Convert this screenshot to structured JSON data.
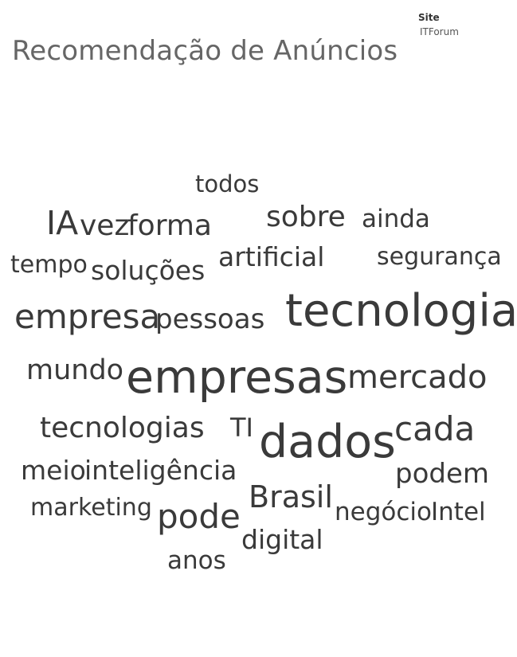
{
  "header": {
    "title": "Recomendação de Anúncios",
    "filter_label": "Site",
    "filter_value": "ITForum"
  },
  "colors": {
    "title": "#666666",
    "words": "#3a3a3a"
  },
  "chart_data": {
    "type": "word_cloud",
    "title": "Recomendação de Anúncios",
    "filter": {
      "Site": "ITForum"
    },
    "words": [
      {
        "text": "todos",
        "weight": 29
      },
      {
        "text": "IA",
        "weight": 41
      },
      {
        "text": "vez",
        "weight": 36
      },
      {
        "text": "forma",
        "weight": 36
      },
      {
        "text": "sobre",
        "weight": 36
      },
      {
        "text": "ainda",
        "weight": 31
      },
      {
        "text": "tempo",
        "weight": 30
      },
      {
        "text": "soluções",
        "weight": 33
      },
      {
        "text": "artificial",
        "weight": 33
      },
      {
        "text": "segurança",
        "weight": 30
      },
      {
        "text": "empresa",
        "weight": 42
      },
      {
        "text": "pessoas",
        "weight": 34
      },
      {
        "text": "tecnologia",
        "weight": 56
      },
      {
        "text": "mundo",
        "weight": 35
      },
      {
        "text": "empresas",
        "weight": 57
      },
      {
        "text": "mercado",
        "weight": 40
      },
      {
        "text": "tecnologias",
        "weight": 36
      },
      {
        "text": "TI",
        "weight": 32
      },
      {
        "text": "dados",
        "weight": 57
      },
      {
        "text": "cada",
        "weight": 42
      },
      {
        "text": "meio",
        "weight": 33
      },
      {
        "text": "inteligência",
        "weight": 33
      },
      {
        "text": "podem",
        "weight": 34
      },
      {
        "text": "marketing",
        "weight": 30
      },
      {
        "text": "pode",
        "weight": 42
      },
      {
        "text": "Brasil",
        "weight": 38
      },
      {
        "text": "negócio",
        "weight": 31
      },
      {
        "text": "Intel",
        "weight": 31
      },
      {
        "text": "digital",
        "weight": 33
      },
      {
        "text": "anos",
        "weight": 31
      }
    ]
  }
}
